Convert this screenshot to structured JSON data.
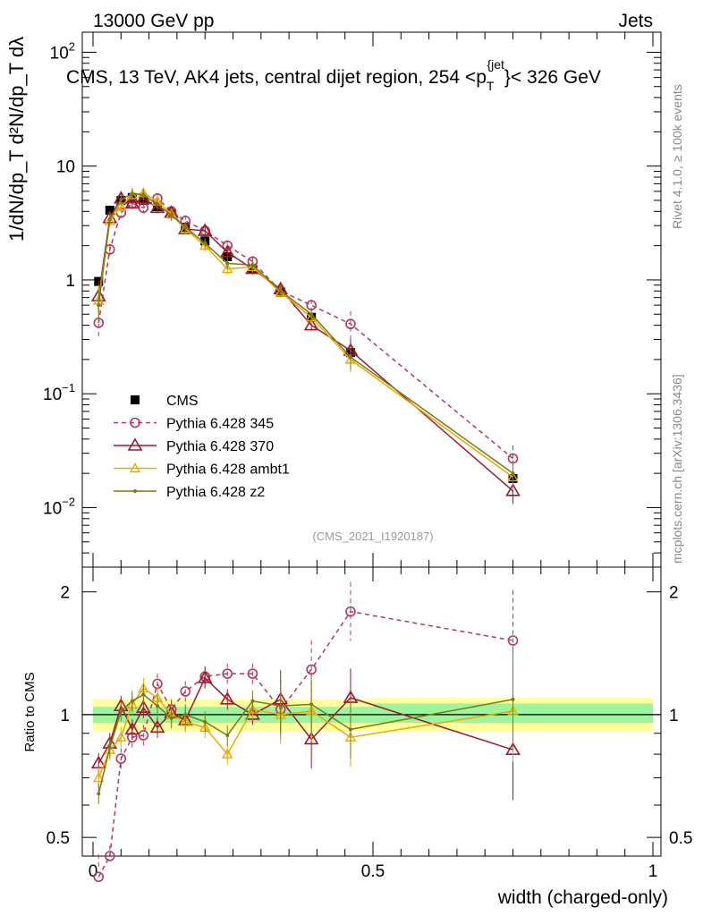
{
  "header": {
    "left": "13000 GeV pp",
    "right": "Jets"
  },
  "side_labels": {
    "rivet": "Rivet 4.1.0, ≥ 100k events",
    "mcplots": "mcplots.cern.ch [arXiv:1306.3436]"
  },
  "chart_data": [
    {
      "type": "line",
      "panel": "main",
      "title": "CMS, 13 TeV, AK4 jets, central dijet region, 254 <p_T^{jet}> < 326 GeV",
      "title_parts": {
        "pre": "CMS, 13 TeV, AK4 jets, central dijet region, 254 <p",
        "sub": "T",
        "sup": "{jet",
        "post": "}< 326 GeV"
      },
      "xlabel": "width (charged-only)",
      "ylabel": "1/dN/dp_T  d²N/dp_T dλ",
      "yscale": "log",
      "xlim": [
        -0.02,
        1.0
      ],
      "ylim": [
        0.003,
        150
      ],
      "y_ticks": [
        {
          "value": 0.01,
          "base": "10",
          "exp": "−2"
        },
        {
          "value": 0.1,
          "base": "10",
          "exp": "−1"
        },
        {
          "value": 1,
          "base": "1",
          "exp": ""
        },
        {
          "value": 10,
          "base": "10",
          "exp": ""
        },
        {
          "value": 100,
          "base": "10",
          "exp": "2"
        }
      ],
      "watermark": "(CMS_2021_I1920187)",
      "series": [
        {
          "name": "CMS",
          "key": "cms",
          "color": "#000000",
          "style": "square",
          "x": [
            0.01,
            0.03,
            0.05,
            0.07,
            0.09,
            0.115,
            0.14,
            0.165,
            0.2,
            0.24,
            0.285,
            0.335,
            0.39,
            0.46,
            0.75
          ],
          "y": [
            0.97,
            4.1,
            5.0,
            5.3,
            5.0,
            4.4,
            3.8,
            2.9,
            2.2,
            1.6,
            1.25,
            0.78,
            0.47,
            0.23,
            0.018
          ]
        },
        {
          "name": "Pythia 6.428 345",
          "key": "p345",
          "color": "#b03a5b",
          "style": "circle-dashed",
          "x": [
            0.01,
            0.03,
            0.05,
            0.07,
            0.09,
            0.115,
            0.14,
            0.165,
            0.2,
            0.24,
            0.285,
            0.335,
            0.39,
            0.46,
            0.75
          ],
          "y": [
            0.42,
            1.85,
            3.9,
            4.7,
            4.3,
            5.2,
            4.0,
            3.3,
            2.7,
            2.0,
            1.45,
            0.8,
            0.6,
            0.41,
            0.027
          ]
        },
        {
          "name": "Pythia 6.428 370",
          "key": "p370",
          "color": "#9a1b2f",
          "style": "triangle",
          "x": [
            0.01,
            0.03,
            0.05,
            0.07,
            0.09,
            0.115,
            0.14,
            0.165,
            0.2,
            0.24,
            0.285,
            0.335,
            0.39,
            0.46,
            0.75
          ],
          "y": [
            0.72,
            3.5,
            5.2,
            4.7,
            5.2,
            4.3,
            3.9,
            2.8,
            2.7,
            1.75,
            1.25,
            0.83,
            0.4,
            0.24,
            0.014
          ]
        },
        {
          "name": "Pythia 6.428 ambt1",
          "key": "ambt1",
          "color": "#e8a900",
          "style": "triangle-small",
          "x": [
            0.01,
            0.03,
            0.05,
            0.07,
            0.09,
            0.115,
            0.14,
            0.165,
            0.2,
            0.24,
            0.285,
            0.335,
            0.39,
            0.46,
            0.75
          ],
          "y": [
            0.66,
            3.3,
            4.4,
            5.6,
            5.8,
            4.9,
            3.8,
            2.8,
            2.0,
            1.25,
            1.3,
            0.78,
            0.47,
            0.2,
            0.0185
          ]
        },
        {
          "name": "Pythia 6.428 z2",
          "key": "z2",
          "color": "#7a7a14",
          "style": "dot",
          "x": [
            0.01,
            0.03,
            0.05,
            0.07,
            0.09,
            0.115,
            0.14,
            0.165,
            0.2,
            0.24,
            0.285,
            0.335,
            0.39,
            0.46,
            0.75
          ],
          "y": [
            0.6,
            3.4,
            5.1,
            5.7,
            5.6,
            4.6,
            3.7,
            2.9,
            2.1,
            1.4,
            1.35,
            0.8,
            0.5,
            0.21,
            0.02
          ]
        }
      ]
    },
    {
      "type": "line",
      "panel": "ratio",
      "xlabel": "width (charged-only)",
      "ylabel": "Ratio to CMS",
      "yscale": "log",
      "xlim": [
        -0.02,
        1.0
      ],
      "ylim": [
        0.45,
        2.3
      ],
      "y_ticks": [
        0.5,
        1,
        2
      ],
      "x_ticks": [
        0,
        0.5,
        1
      ],
      "bands": [
        {
          "x0": 0.0,
          "x1": 0.5,
          "inner": [
            0.955,
            1.045
          ],
          "outer": [
            0.91,
            1.09
          ]
        },
        {
          "x0": 0.5,
          "x1": 1.0,
          "inner": [
            0.955,
            1.065
          ],
          "outer": [
            0.91,
            1.1
          ]
        }
      ],
      "series": [
        {
          "name": "Pythia 6.428 345",
          "key": "p345",
          "x": [
            0.01,
            0.03,
            0.05,
            0.07,
            0.09,
            0.115,
            0.14,
            0.165,
            0.2,
            0.24,
            0.285,
            0.335,
            0.39,
            0.46,
            0.75
          ],
          "y": [
            0.4,
            0.45,
            0.78,
            0.88,
            0.89,
            1.19,
            1.03,
            1.14,
            1.24,
            1.26,
            1.26,
            1.03,
            1.29,
            1.79,
            1.52
          ]
        },
        {
          "name": "Pythia 6.428 370",
          "key": "p370",
          "x": [
            0.01,
            0.03,
            0.05,
            0.07,
            0.09,
            0.115,
            0.14,
            0.165,
            0.2,
            0.24,
            0.285,
            0.335,
            0.39,
            0.46,
            0.75
          ],
          "y": [
            0.76,
            0.85,
            1.05,
            0.92,
            1.04,
            0.93,
            1.01,
            0.97,
            1.23,
            1.09,
            1.0,
            1.09,
            0.87,
            1.1,
            0.82
          ]
        },
        {
          "name": "Pythia 6.428 ambt1",
          "key": "ambt1",
          "x": [
            0.01,
            0.03,
            0.05,
            0.07,
            0.09,
            0.115,
            0.14,
            0.165,
            0.2,
            0.24,
            0.285,
            0.335,
            0.39,
            0.46,
            0.75
          ],
          "y": [
            0.7,
            0.82,
            0.88,
            1.06,
            1.16,
            1.1,
            1.0,
            0.96,
            0.93,
            0.8,
            1.03,
            1.0,
            1.02,
            0.88,
            1.02
          ]
        },
        {
          "name": "Pythia 6.428 z2",
          "key": "z2",
          "x": [
            0.01,
            0.03,
            0.05,
            0.07,
            0.09,
            0.115,
            0.14,
            0.165,
            0.2,
            0.24,
            0.285,
            0.335,
            0.39,
            0.46,
            0.75
          ],
          "y": [
            0.64,
            0.83,
            1.02,
            1.08,
            1.12,
            1.05,
            0.98,
            1.0,
            0.96,
            0.89,
            1.08,
            1.05,
            1.06,
            0.92,
            1.09
          ]
        }
      ]
    }
  ]
}
